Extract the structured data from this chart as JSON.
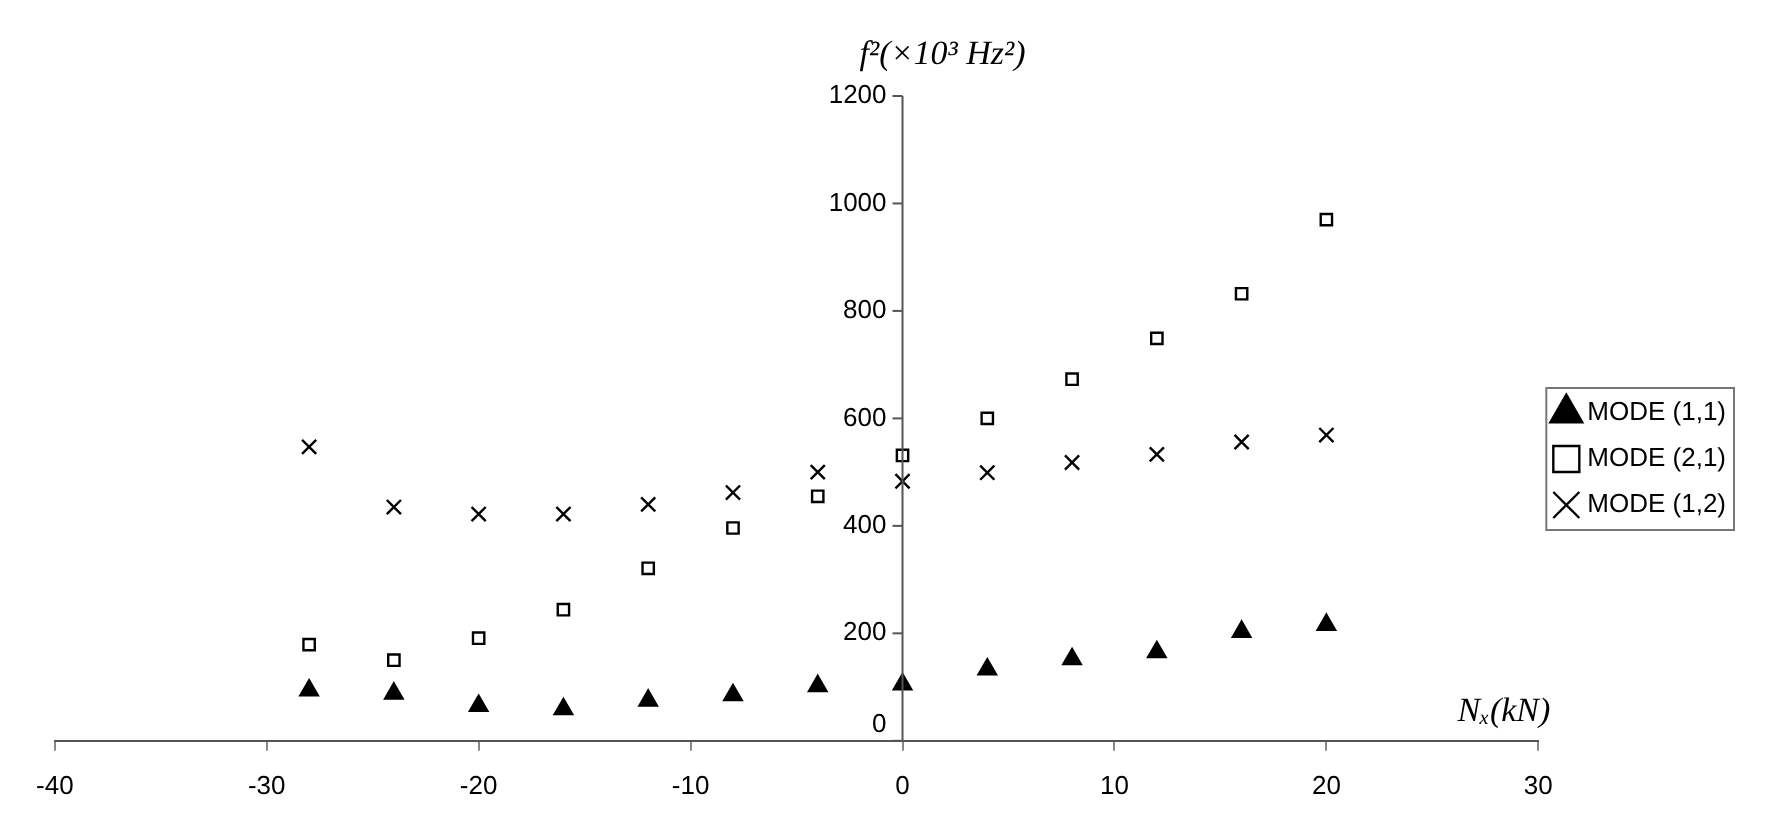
{
  "chart_data": {
    "type": "scatter",
    "xlabel": "Nₓ(kN)",
    "ylabel": "f²(×10³ Hz²)",
    "x": [
      -28,
      -24,
      -20,
      -16,
      -12,
      -8,
      -4,
      0,
      4,
      8,
      12,
      16,
      20
    ],
    "xlim": [
      -40,
      30
    ],
    "xticks": [
      -40,
      -30,
      -20,
      -10,
      0,
      10,
      20,
      30
    ],
    "ylim": [
      0,
      1200
    ],
    "yticks": [
      0,
      200,
      400,
      600,
      800,
      1000,
      1200
    ],
    "grid": false,
    "legend": "right",
    "series": [
      {
        "name": "MODE (1,1)",
        "color": "#000000",
        "marker": "triangle",
        "values": [
          94,
          88,
          65,
          59,
          75,
          85,
          102,
          105,
          133,
          152,
          165,
          203,
          216
        ]
      },
      {
        "name": "MODE (2,1)",
        "color": "#000000",
        "marker": "square",
        "values": [
          179,
          150,
          191,
          244,
          321,
          396,
          455,
          531,
          600,
          673,
          749,
          832,
          970
        ]
      },
      {
        "name": "MODE (1,2)",
        "color": "#000000",
        "marker": "cross",
        "values": [
          547,
          435,
          422,
          422,
          440,
          462,
          500,
          483,
          499,
          518,
          533,
          556,
          569
        ]
      }
    ]
  }
}
